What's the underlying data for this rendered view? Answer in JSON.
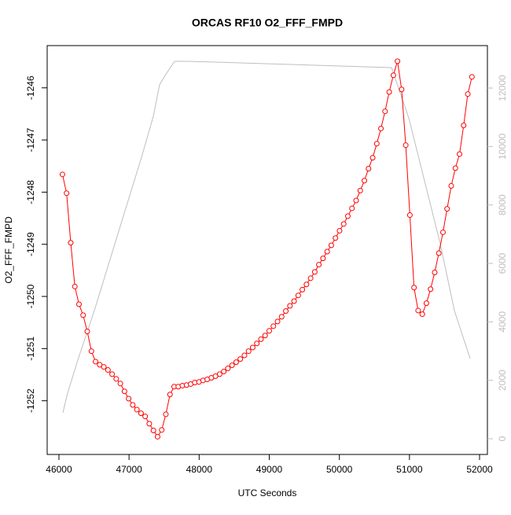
{
  "chart_data": {
    "type": "line",
    "title": "ORCAS RF10 O2_FFF_FMPD",
    "xlabel": "UTC Seconds",
    "ylabel": "O2_FFF_FMPD",
    "xlim": [
      45832,
      52112
    ],
    "xticks": [
      46000,
      47000,
      48000,
      49000,
      50000,
      51000,
      52000
    ],
    "ylim": [
      -1253.03,
      -1245.19
    ],
    "yticks": [
      -1252,
      -1251,
      -1250,
      -1249,
      -1248,
      -1247,
      -1246
    ],
    "y2lim": [
      -538,
      13453
    ],
    "y2ticks": [
      0,
      2000,
      4000,
      6000,
      8000,
      10000,
      12000
    ],
    "series": [
      {
        "color": "#ff0000",
        "marker": "open-circle",
        "x": [
          46050,
          46109,
          46168,
          46227,
          46286,
          46345,
          46404,
          46463,
          46522,
          46581,
          46640,
          46699,
          46758,
          46817,
          46876,
          46935,
          46994,
          47053,
          47112,
          47171,
          47230,
          47289,
          47348,
          47407,
          47466,
          47525,
          47584,
          47643,
          47702,
          47761,
          47820,
          47879,
          47938,
          47997,
          48056,
          48115,
          48174,
          48233,
          48292,
          48351,
          48410,
          48469,
          48528,
          48587,
          48646,
          48705,
          48764,
          48823,
          48882,
          48941,
          49000,
          49059,
          49118,
          49177,
          49236,
          49295,
          49354,
          49413,
          49472,
          49531,
          49590,
          49649,
          49708,
          49767,
          49826,
          49885,
          49944,
          50003,
          50062,
          50121,
          50180,
          50239,
          50298,
          50357,
          50416,
          50475,
          50534,
          50593,
          50652,
          50711,
          50770,
          50829,
          50888,
          50947,
          51006,
          51065,
          51124,
          51183,
          51242,
          51301,
          51360,
          51419,
          51478,
          51537,
          51596,
          51655,
          51714,
          51773,
          51832,
          51891
        ],
        "values": [
          -1247.66,
          -1248.02,
          -1248.97,
          -1249.81,
          -1250.15,
          -1250.36,
          -1250.67,
          -1251.05,
          -1251.25,
          -1251.31,
          -1251.35,
          -1251.41,
          -1251.49,
          -1251.58,
          -1251.67,
          -1251.82,
          -1251.96,
          -1252.08,
          -1252.17,
          -1252.24,
          -1252.3,
          -1252.44,
          -1252.57,
          -1252.69,
          -1252.56,
          -1252.26,
          -1251.88,
          -1251.73,
          -1251.73,
          -1251.71,
          -1251.7,
          -1251.68,
          -1251.65,
          -1251.64,
          -1251.61,
          -1251.59,
          -1251.56,
          -1251.53,
          -1251.49,
          -1251.44,
          -1251.38,
          -1251.32,
          -1251.26,
          -1251.2,
          -1251.13,
          -1251.05,
          -1250.98,
          -1250.9,
          -1250.82,
          -1250.75,
          -1250.66,
          -1250.57,
          -1250.48,
          -1250.39,
          -1250.28,
          -1250.18,
          -1250.09,
          -1249.98,
          -1249.87,
          -1249.77,
          -1249.65,
          -1249.53,
          -1249.39,
          -1249.27,
          -1249.14,
          -1249.02,
          -1248.88,
          -1248.74,
          -1248.61,
          -1248.46,
          -1248.31,
          -1248.16,
          -1247.97,
          -1247.78,
          -1247.55,
          -1247.34,
          -1247.07,
          -1246.78,
          -1246.45,
          -1246.08,
          -1245.76,
          -1245.49,
          -1246.03,
          -1247.1,
          -1248.44,
          -1249.83,
          -1250.27,
          -1250.34,
          -1250.13,
          -1249.86,
          -1249.54,
          -1249.17,
          -1248.77,
          -1248.32,
          -1247.88,
          -1247.54,
          -1247.27,
          -1246.72,
          -1246.12,
          -1245.79
        ]
      },
      {
        "color": "#bebebe",
        "axis": "y2",
        "x": [
          46056,
          46123,
          46280,
          46505,
          46729,
          46953,
          47178,
          47346,
          47435,
          47514,
          47649,
          47850,
          50744,
          50990,
          51215,
          51439,
          51641,
          51865
        ],
        "values": [
          888,
          1560,
          2771,
          4386,
          6135,
          7884,
          9633,
          11032,
          12108,
          12431,
          12915,
          12915,
          12700,
          10978,
          8826,
          6673,
          4386,
          2744
        ]
      }
    ]
  }
}
